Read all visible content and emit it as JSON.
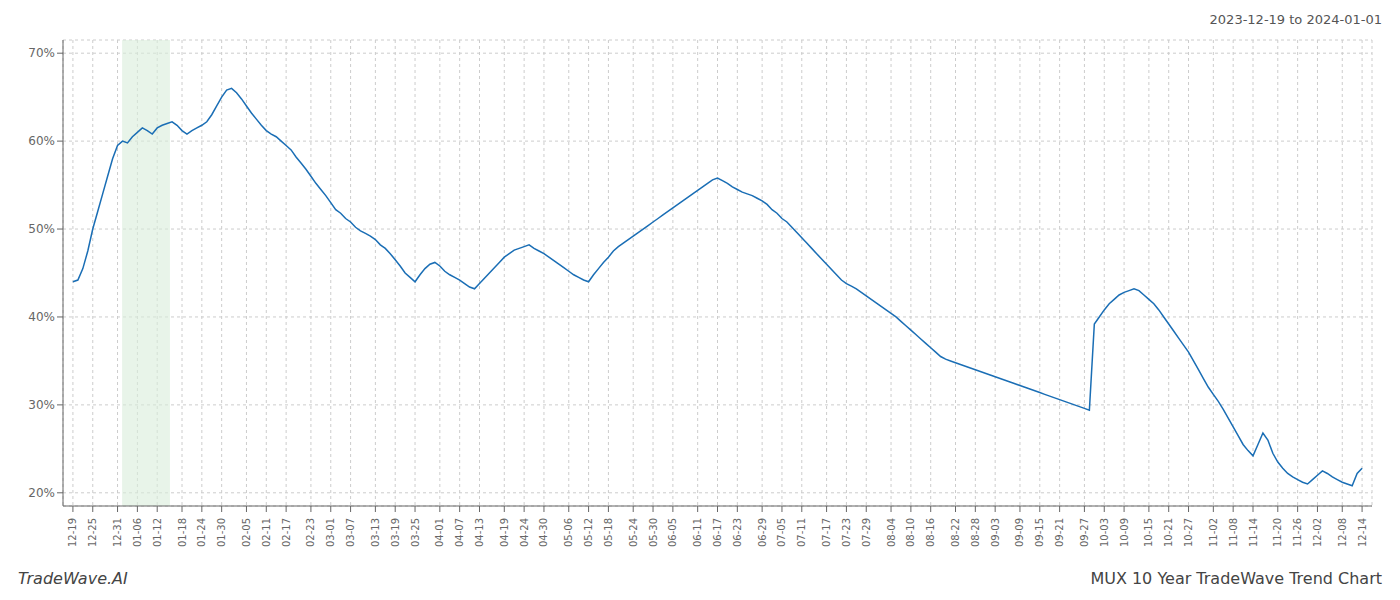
{
  "chart_data": {
    "type": "line",
    "title": "2023-12-19 to 2024-01-01",
    "annotations": [
      "TradeWave.AI",
      "MUX 10 Year TradeWave Trend Chart"
    ],
    "color": "#1a6eb5",
    "grid": true,
    "ylim": [
      0.185,
      0.715
    ],
    "yticks": [
      {
        "value": 0.2,
        "label": "20%"
      },
      {
        "value": 0.3,
        "label": "30%"
      },
      {
        "value": 0.4,
        "label": "40%"
      },
      {
        "value": 0.5,
        "label": "50%"
      },
      {
        "value": 0.6,
        "label": "60%"
      },
      {
        "value": 0.7,
        "label": "70%"
      }
    ],
    "shade": {
      "x": [
        9.918,
        19.575
      ],
      "color": "#d8edda"
    },
    "categories": [
      "12-19",
      null,
      null,
      null,
      "12-25",
      null,
      null,
      null,
      null,
      "12-31",
      null,
      null,
      null,
      "01-06",
      null,
      null,
      null,
      "01-12",
      null,
      null,
      null,
      null,
      "01-18",
      null,
      null,
      null,
      "01-24",
      null,
      null,
      null,
      "01-30",
      null,
      null,
      null,
      null,
      "02-05",
      null,
      null,
      null,
      "02-11",
      null,
      null,
      null,
      "02-17",
      null,
      null,
      null,
      null,
      "02-23",
      null,
      null,
      null,
      "03-01",
      null,
      null,
      null,
      "03-07",
      null,
      null,
      null,
      null,
      "03-13",
      null,
      null,
      null,
      "03-19",
      null,
      null,
      null,
      "03-25",
      null,
      null,
      null,
      null,
      "04-01",
      null,
      null,
      null,
      "04-07",
      null,
      null,
      null,
      "04-13",
      null,
      null,
      null,
      null,
      "04-19",
      null,
      null,
      null,
      "04-24",
      null,
      null,
      null,
      "04-30",
      null,
      null,
      null,
      null,
      "05-06",
      null,
      null,
      null,
      "05-12",
      null,
      null,
      null,
      "05-18",
      null,
      null,
      null,
      null,
      "05-24",
      null,
      null,
      null,
      "05-30",
      null,
      null,
      null,
      "06-05",
      null,
      null,
      null,
      null,
      "06-11",
      null,
      null,
      null,
      "06-17",
      null,
      null,
      null,
      "06-23",
      null,
      null,
      null,
      null,
      "06-29",
      null,
      null,
      null,
      "07-05",
      null,
      null,
      null,
      "07-11",
      null,
      null,
      null,
      null,
      "07-17",
      null,
      null,
      null,
      "07-23",
      null,
      null,
      null,
      "07-29",
      null,
      null,
      null,
      null,
      "08-04",
      null,
      null,
      null,
      "08-10",
      null,
      null,
      null,
      "08-16",
      null,
      null,
      null,
      null,
      "08-22",
      null,
      null,
      null,
      "08-28",
      null,
      null,
      null,
      "09-03",
      null,
      null,
      null,
      null,
      "09-09",
      null,
      null,
      null,
      "09-15",
      null,
      null,
      null,
      "09-21",
      null,
      null,
      null,
      null,
      "09-27",
      null,
      null,
      null,
      "10-03",
      null,
      null,
      null,
      "10-09",
      null,
      null,
      null,
      null,
      "10-15",
      null,
      null,
      null,
      "10-21",
      null,
      null,
      null,
      "10-27",
      null,
      null,
      null,
      null,
      "11-02",
      null,
      null,
      null,
      "11-08",
      null,
      null,
      null,
      "11-14",
      null,
      null,
      null,
      null,
      "11-20",
      null,
      null,
      null,
      "11-26",
      null,
      null,
      null,
      "12-02",
      null,
      null,
      null,
      null,
      "12-08",
      null,
      null,
      null,
      "12-14"
    ],
    "values": [
      0.44,
      0.442,
      0.455,
      0.475,
      0.5,
      0.52,
      0.54,
      0.56,
      0.58,
      0.595,
      0.6,
      0.598,
      0.605,
      0.61,
      0.615,
      0.612,
      0.608,
      0.615,
      0.618,
      0.62,
      0.622,
      0.618,
      0.612,
      0.608,
      0.612,
      0.615,
      0.618,
      0.622,
      0.63,
      0.64,
      0.65,
      0.658,
      0.66,
      0.655,
      0.648,
      0.64,
      0.632,
      0.625,
      0.618,
      0.612,
      0.608,
      0.605,
      0.6,
      0.595,
      0.59,
      0.582,
      0.575,
      0.568,
      0.56,
      0.552,
      0.545,
      0.538,
      0.53,
      0.522,
      0.518,
      0.512,
      0.508,
      0.502,
      0.498,
      0.495,
      0.492,
      0.488,
      0.482,
      0.478,
      0.472,
      0.465,
      0.458,
      0.45,
      0.445,
      0.44,
      0.448,
      0.455,
      0.46,
      0.462,
      0.458,
      0.452,
      0.448,
      0.445,
      0.442,
      0.438,
      0.434,
      0.432,
      0.438,
      0.444,
      0.45,
      0.456,
      0.462,
      0.468,
      0.472,
      0.476,
      0.478,
      0.48,
      0.482,
      0.478,
      0.475,
      0.472,
      0.468,
      0.464,
      0.46,
      0.456,
      0.452,
      0.448,
      0.445,
      0.442,
      0.44,
      0.448,
      0.455,
      0.462,
      0.468,
      0.475,
      0.48,
      0.484,
      0.488,
      0.492,
      0.496,
      0.5,
      0.504,
      0.508,
      0.512,
      0.516,
      0.52,
      0.524,
      0.528,
      0.532,
      0.536,
      0.54,
      0.544,
      0.548,
      0.552,
      0.556,
      0.558,
      0.555,
      0.552,
      0.548,
      0.545,
      0.542,
      0.54,
      0.538,
      0.535,
      0.532,
      0.528,
      0.522,
      0.518,
      0.512,
      0.508,
      0.502,
      0.496,
      0.49,
      0.484,
      0.478,
      0.472,
      0.466,
      0.46,
      0.454,
      0.448,
      0.442,
      0.438,
      0.435,
      0.432,
      0.428,
      0.424,
      0.42,
      0.416,
      0.412,
      0.408,
      0.404,
      0.4,
      0.395,
      0.39,
      0.385,
      0.38,
      0.375,
      0.37,
      0.365,
      0.36,
      0.355,
      0.352,
      0.35,
      0.348,
      0.346,
      0.344,
      0.342,
      0.34,
      0.338,
      0.336,
      0.334,
      0.332,
      0.33,
      0.328,
      0.326,
      0.324,
      0.322,
      0.32,
      0.318,
      0.316,
      0.314,
      0.312,
      0.31,
      0.308,
      0.306,
      0.304,
      0.302,
      0.3,
      0.298,
      0.296,
      0.294,
      0.392,
      0.4,
      0.408,
      0.415,
      0.42,
      0.425,
      0.428,
      0.43,
      0.432,
      0.43,
      0.425,
      0.42,
      0.415,
      0.408,
      0.4,
      0.392,
      0.384,
      0.376,
      0.368,
      0.36,
      0.35,
      0.34,
      0.33,
      0.32,
      0.312,
      0.304,
      0.295,
      0.285,
      0.275,
      0.265,
      0.255,
      0.248,
      0.242,
      0.255,
      0.268,
      0.26,
      0.245,
      0.235,
      0.228,
      0.222,
      0.218,
      0.215,
      0.212,
      0.21,
      0.215,
      0.22,
      0.225,
      0.222,
      0.218,
      0.215,
      0.212,
      0.21,
      0.208,
      0.222,
      0.228
    ]
  }
}
